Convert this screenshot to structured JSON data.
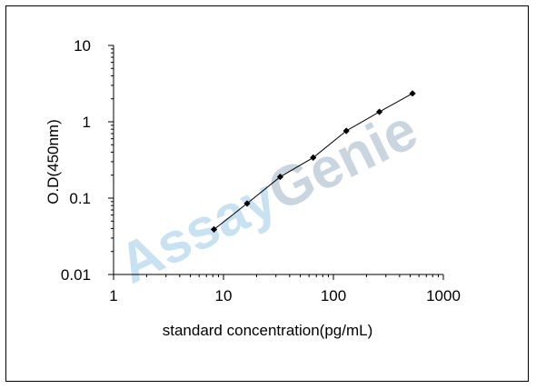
{
  "watermark": {
    "text_part1": "Assay",
    "text_part2": "Genie",
    "color_part1": "#c9e2f1",
    "color_part2": "#c9d5df"
  },
  "chart_data": {
    "type": "line",
    "xlabel": "standard concentration(pg/mL)",
    "ylabel": "O.D(450nm)",
    "x_scale": "log",
    "y_scale": "log",
    "xlim": [
      1,
      1000
    ],
    "ylim": [
      0.01,
      10
    ],
    "x_ticks": [
      1,
      10,
      100,
      1000
    ],
    "x_tick_labels": [
      "1",
      "10",
      "100",
      "1000"
    ],
    "y_ticks": [
      0.01,
      0.1,
      1,
      10
    ],
    "y_tick_labels": [
      "0.01",
      "0.1",
      "1",
      "10"
    ],
    "grid": false,
    "series": [
      {
        "x": [
          8.2,
          16.4,
          32.8,
          65.5,
          131,
          262,
          524
        ],
        "y": [
          0.039,
          0.085,
          0.19,
          0.34,
          0.76,
          1.35,
          2.35
        ],
        "color": "#000000",
        "marker": "diamond"
      }
    ]
  }
}
